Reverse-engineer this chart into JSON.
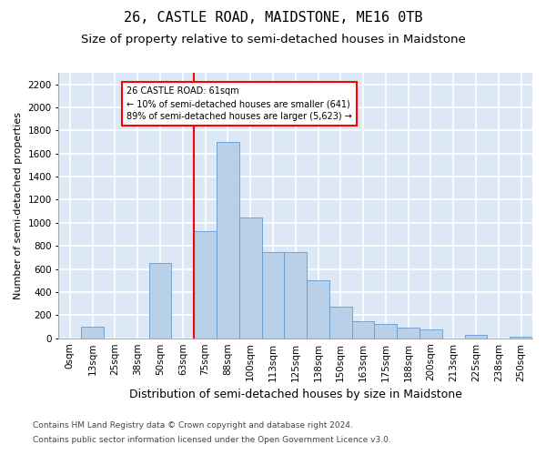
{
  "title1": "26, CASTLE ROAD, MAIDSTONE, ME16 0TB",
  "title2": "Size of property relative to semi-detached houses in Maidstone",
  "xlabel": "Distribution of semi-detached houses by size in Maidstone",
  "ylabel": "Number of semi-detached properties",
  "footnote1": "Contains HM Land Registry data © Crown copyright and database right 2024.",
  "footnote2": "Contains public sector information licensed under the Open Government Licence v3.0.",
  "bin_labels": [
    "0sqm",
    "13sqm",
    "25sqm",
    "38sqm",
    "50sqm",
    "63sqm",
    "75sqm",
    "88sqm",
    "100sqm",
    "113sqm",
    "125sqm",
    "138sqm",
    "150sqm",
    "163sqm",
    "175sqm",
    "188sqm",
    "200sqm",
    "213sqm",
    "225sqm",
    "238sqm",
    "250sqm"
  ],
  "bar_values": [
    0,
    100,
    0,
    0,
    650,
    0,
    930,
    1700,
    1050,
    750,
    750,
    500,
    270,
    150,
    120,
    90,
    80,
    0,
    30,
    0,
    10
  ],
  "bar_color": "#b8d0e8",
  "bar_edgecolor": "#6699cc",
  "annotation_text": "26 CASTLE ROAD: 61sqm\n← 10% of semi-detached houses are smaller (641)\n89% of semi-detached houses are larger (5,623) →",
  "annotation_box_color": "white",
  "annotation_border_color": "red",
  "redline_color": "red",
  "redline_x": 5.5,
  "ylim": [
    0,
    2300
  ],
  "yticks": [
    0,
    200,
    400,
    600,
    800,
    1000,
    1200,
    1400,
    1600,
    1800,
    2000,
    2200
  ],
  "background_color": "#dce8f5",
  "grid_color": "white",
  "title1_fontsize": 11,
  "title2_fontsize": 9.5,
  "xlabel_fontsize": 9,
  "ylabel_fontsize": 8,
  "tick_fontsize": 7.5,
  "footnote_fontsize": 6.5
}
